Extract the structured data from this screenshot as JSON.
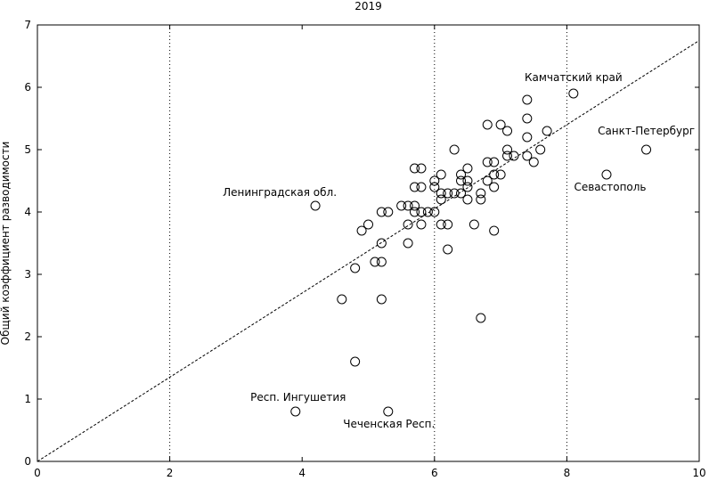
{
  "chart_data": {
    "type": "scatter",
    "title": "2019",
    "xlabel": "",
    "ylabel": "Общий коэффициент разводимости",
    "xlim": [
      0,
      10
    ],
    "ylim": [
      0,
      7
    ],
    "xticks": [
      "0",
      "2",
      "4",
      "6",
      "8",
      "10"
    ],
    "yticks": [
      "0",
      "1",
      "2",
      "3",
      "4",
      "5",
      "6",
      "7"
    ],
    "vertical_reference_lines_x": [
      2,
      6,
      8
    ],
    "trend_line": {
      "from": [
        0,
        0
      ],
      "to": [
        10,
        6.75
      ]
    },
    "grid": false,
    "legend": "none",
    "marker": "open-circle",
    "points": [
      [
        3.9,
        0.8
      ],
      [
        4.2,
        4.1
      ],
      [
        4.6,
        2.6
      ],
      [
        4.8,
        1.6
      ],
      [
        4.8,
        3.1
      ],
      [
        4.9,
        3.7
      ],
      [
        5.0,
        3.8
      ],
      [
        5.1,
        3.2
      ],
      [
        5.2,
        3.2
      ],
      [
        5.2,
        3.5
      ],
      [
        5.2,
        2.6
      ],
      [
        5.2,
        4.0
      ],
      [
        5.3,
        4.0
      ],
      [
        5.3,
        0.8
      ],
      [
        5.5,
        4.1
      ],
      [
        5.6,
        4.1
      ],
      [
        5.6,
        3.8
      ],
      [
        5.6,
        3.5
      ],
      [
        5.7,
        4.0
      ],
      [
        5.7,
        4.1
      ],
      [
        5.7,
        4.4
      ],
      [
        5.7,
        4.7
      ],
      [
        5.8,
        4.7
      ],
      [
        5.8,
        4.4
      ],
      [
        5.8,
        4.0
      ],
      [
        5.8,
        3.8
      ],
      [
        5.9,
        4.0
      ],
      [
        6.0,
        4.0
      ],
      [
        6.0,
        4.4
      ],
      [
        6.0,
        4.5
      ],
      [
        6.1,
        4.6
      ],
      [
        6.1,
        4.3
      ],
      [
        6.1,
        4.2
      ],
      [
        6.1,
        3.8
      ],
      [
        6.2,
        3.8
      ],
      [
        6.2,
        3.4
      ],
      [
        6.2,
        4.3
      ],
      [
        6.3,
        4.3
      ],
      [
        6.3,
        5.0
      ],
      [
        6.4,
        4.3
      ],
      [
        6.4,
        4.5
      ],
      [
        6.4,
        4.6
      ],
      [
        6.5,
        4.4
      ],
      [
        6.5,
        4.5
      ],
      [
        6.5,
        4.7
      ],
      [
        6.5,
        4.2
      ],
      [
        6.6,
        3.8
      ],
      [
        6.7,
        4.3
      ],
      [
        6.7,
        4.2
      ],
      [
        6.7,
        2.3
      ],
      [
        6.8,
        4.5
      ],
      [
        6.8,
        4.8
      ],
      [
        6.8,
        5.4
      ],
      [
        6.9,
        4.4
      ],
      [
        6.9,
        4.6
      ],
      [
        6.9,
        4.8
      ],
      [
        6.9,
        3.7
      ],
      [
        7.0,
        5.4
      ],
      [
        7.0,
        4.6
      ],
      [
        7.1,
        4.9
      ],
      [
        7.1,
        5.0
      ],
      [
        7.1,
        5.3
      ],
      [
        7.2,
        4.9
      ],
      [
        7.4,
        5.8
      ],
      [
        7.4,
        5.5
      ],
      [
        7.4,
        5.2
      ],
      [
        7.4,
        4.9
      ],
      [
        7.5,
        4.8
      ],
      [
        7.6,
        5.0
      ],
      [
        7.7,
        5.3
      ],
      [
        8.1,
        5.9
      ],
      [
        8.6,
        4.6
      ],
      [
        9.2,
        5.0
      ]
    ],
    "annotations": [
      {
        "text": "Камчатский край",
        "x": 8.1,
        "y": 5.9
      },
      {
        "text": "Санкт-Петербург",
        "x": 9.2,
        "y": 5.0
      },
      {
        "text": "Севастополь",
        "x": 8.6,
        "y": 4.6
      },
      {
        "text": "Ленинградская обл.",
        "x": 4.2,
        "y": 4.1
      },
      {
        "text": "Респ. Ингушетия",
        "x": 3.9,
        "y": 0.8
      },
      {
        "text": "Чеченская Респ.",
        "x": 5.3,
        "y": 0.8
      }
    ]
  }
}
